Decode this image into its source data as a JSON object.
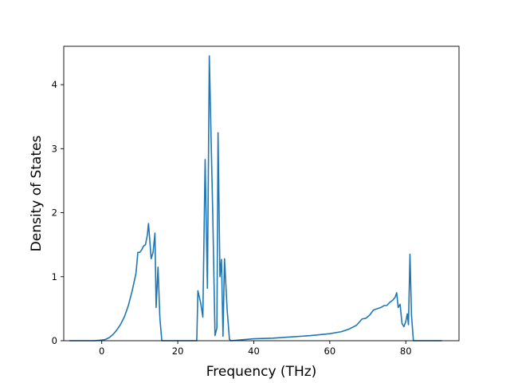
{
  "chart_data": {
    "type": "line",
    "title": "",
    "xlabel": "Frequency (THz)",
    "ylabel": "Density of States",
    "xlim": [
      -10,
      94
    ],
    "ylim": [
      0,
      4.6
    ],
    "xticks": [
      0,
      20,
      40,
      60,
      80
    ],
    "yticks": [
      0,
      1,
      2,
      3,
      4
    ],
    "grid": false,
    "legend": "none",
    "colors": {
      "line": "#1f77b4",
      "axes": "#000000",
      "background": "#ffffff"
    },
    "series": [
      {
        "points": [
          [
            -8.5,
            0
          ],
          [
            -2,
            0
          ],
          [
            0,
            0.01
          ],
          [
            1,
            0.02
          ],
          [
            2,
            0.05
          ],
          [
            3,
            0.1
          ],
          [
            4,
            0.17
          ],
          [
            5,
            0.26
          ],
          [
            6,
            0.38
          ],
          [
            7,
            0.55
          ],
          [
            8,
            0.78
          ],
          [
            9,
            1.05
          ],
          [
            9.5,
            1.38
          ],
          [
            10,
            1.38
          ],
          [
            10.5,
            1.42
          ],
          [
            11,
            1.48
          ],
          [
            11.5,
            1.5
          ],
          [
            12,
            1.65
          ],
          [
            12.3,
            1.83
          ],
          [
            12.6,
            1.6
          ],
          [
            13,
            1.28
          ],
          [
            13.5,
            1.38
          ],
          [
            14,
            1.68
          ],
          [
            14.3,
            0.52
          ],
          [
            14.8,
            1.15
          ],
          [
            15.3,
            0.35
          ],
          [
            15.8,
            0
          ],
          [
            25,
            0
          ],
          [
            25.3,
            0.78
          ],
          [
            26,
            0.6
          ],
          [
            26.6,
            0.37
          ],
          [
            27.2,
            2.83
          ],
          [
            27.8,
            0.82
          ],
          [
            28.3,
            4.45
          ],
          [
            29.2,
            2.0
          ],
          [
            29.8,
            0.08
          ],
          [
            30.3,
            0.2
          ],
          [
            30.6,
            3.25
          ],
          [
            31.1,
            1.0
          ],
          [
            31.5,
            1.27
          ],
          [
            31.9,
            0.07
          ],
          [
            32.3,
            1.28
          ],
          [
            33,
            0.48
          ],
          [
            33.6,
            0.02
          ],
          [
            34,
            0
          ],
          [
            36,
            0.01
          ],
          [
            40,
            0.03
          ],
          [
            45,
            0.04
          ],
          [
            50,
            0.06
          ],
          [
            55,
            0.08
          ],
          [
            60,
            0.11
          ],
          [
            63,
            0.14
          ],
          [
            65,
            0.18
          ],
          [
            67,
            0.24
          ],
          [
            68.5,
            0.34
          ],
          [
            69.5,
            0.35
          ],
          [
            70.5,
            0.4
          ],
          [
            71.5,
            0.48
          ],
          [
            72.5,
            0.5
          ],
          [
            73.5,
            0.52
          ],
          [
            74.3,
            0.55
          ],
          [
            75,
            0.55
          ],
          [
            75.8,
            0.6
          ],
          [
            76.5,
            0.63
          ],
          [
            77.2,
            0.68
          ],
          [
            77.6,
            0.75
          ],
          [
            78,
            0.52
          ],
          [
            78.5,
            0.57
          ],
          [
            79,
            0.27
          ],
          [
            79.5,
            0.22
          ],
          [
            80,
            0.3
          ],
          [
            80.4,
            0.42
          ],
          [
            80.7,
            0.25
          ],
          [
            81.1,
            1.35
          ],
          [
            81.5,
            0.4
          ],
          [
            82,
            0
          ],
          [
            89.5,
            0
          ]
        ]
      }
    ]
  }
}
